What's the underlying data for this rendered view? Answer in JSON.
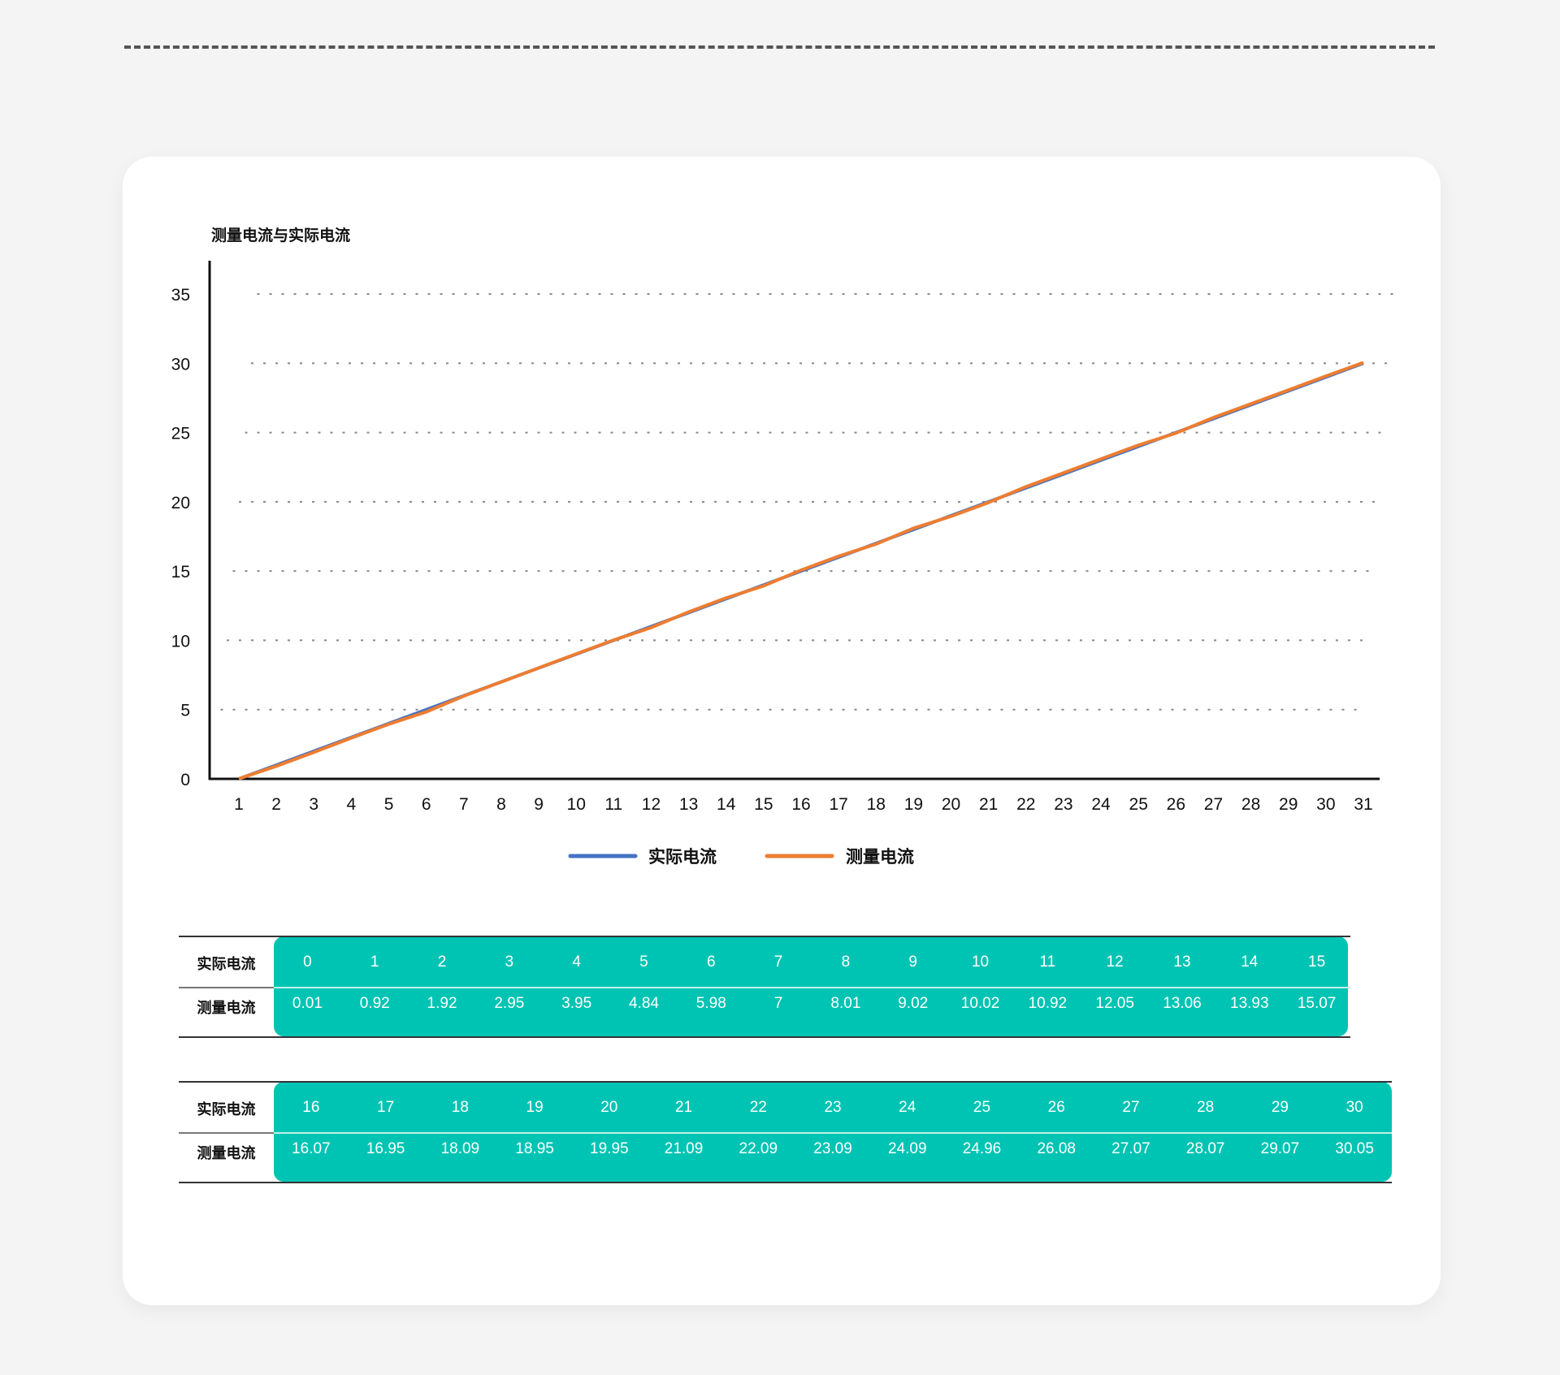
{
  "chart_data": {
    "type": "line",
    "title": "测量电流与实际电流",
    "x": [
      1,
      2,
      3,
      4,
      5,
      6,
      7,
      8,
      9,
      10,
      11,
      12,
      13,
      14,
      15,
      16,
      17,
      18,
      19,
      20,
      21,
      22,
      23,
      24,
      25,
      26,
      27,
      28,
      29,
      30,
      31
    ],
    "series": [
      {
        "name": "实际电流",
        "color": "#4472c4",
        "values": [
          0,
          1,
          2,
          3,
          4,
          5,
          6,
          7,
          8,
          9,
          10,
          11,
          12,
          13,
          14,
          15,
          16,
          17,
          18,
          19,
          20,
          21,
          22,
          23,
          24,
          25,
          26,
          27,
          28,
          29,
          30
        ]
      },
      {
        "name": "测量电流",
        "color": "#ed7d31",
        "values": [
          0.01,
          0.92,
          1.92,
          2.95,
          3.95,
          4.84,
          5.98,
          7,
          8.01,
          9.02,
          10.02,
          10.92,
          12.05,
          13.06,
          13.93,
          15.07,
          16.07,
          16.95,
          18.09,
          18.95,
          19.95,
          21.09,
          22.09,
          23.09,
          24.09,
          24.96,
          26.08,
          27.07,
          28.07,
          29.07,
          30.05
        ]
      }
    ],
    "yticks": [
      0,
      5,
      10,
      15,
      20,
      25,
      30,
      35
    ],
    "ylim": [
      0,
      35
    ],
    "grid": "horizontal dotted",
    "legend": "bottom-center"
  },
  "tables": [
    {
      "row1_label": "实际电流",
      "row2_label": "测量电流",
      "row1": [
        "0",
        "1",
        "2",
        "3",
        "4",
        "5",
        "6",
        "7",
        "8",
        "9",
        "10",
        "11",
        "12",
        "13",
        "14",
        "15"
      ],
      "row2": [
        "0.01",
        "0.92",
        "1.92",
        "2.95",
        "3.95",
        "4.84",
        "5.98",
        "7",
        "8.01",
        "9.02",
        "10.02",
        "10.92",
        "12.05",
        "13.06",
        "13.93",
        "15.07"
      ]
    },
    {
      "row1_label": "实际电流",
      "row2_label": "测量电流",
      "row1": [
        "16",
        "17",
        "18",
        "19",
        "20",
        "21",
        "22",
        "23",
        "24",
        "25",
        "26",
        "27",
        "28",
        "29",
        "30"
      ],
      "row2": [
        "16.07",
        "16.95",
        "18.09",
        "18.95",
        "19.95",
        "21.09",
        "22.09",
        "23.09",
        "24.09",
        "24.96",
        "26.08",
        "27.07",
        "28.07",
        "29.07",
        "30.05"
      ]
    }
  ],
  "colors": {
    "teal": "#00c4b3",
    "background": "#f4f4f4"
  }
}
